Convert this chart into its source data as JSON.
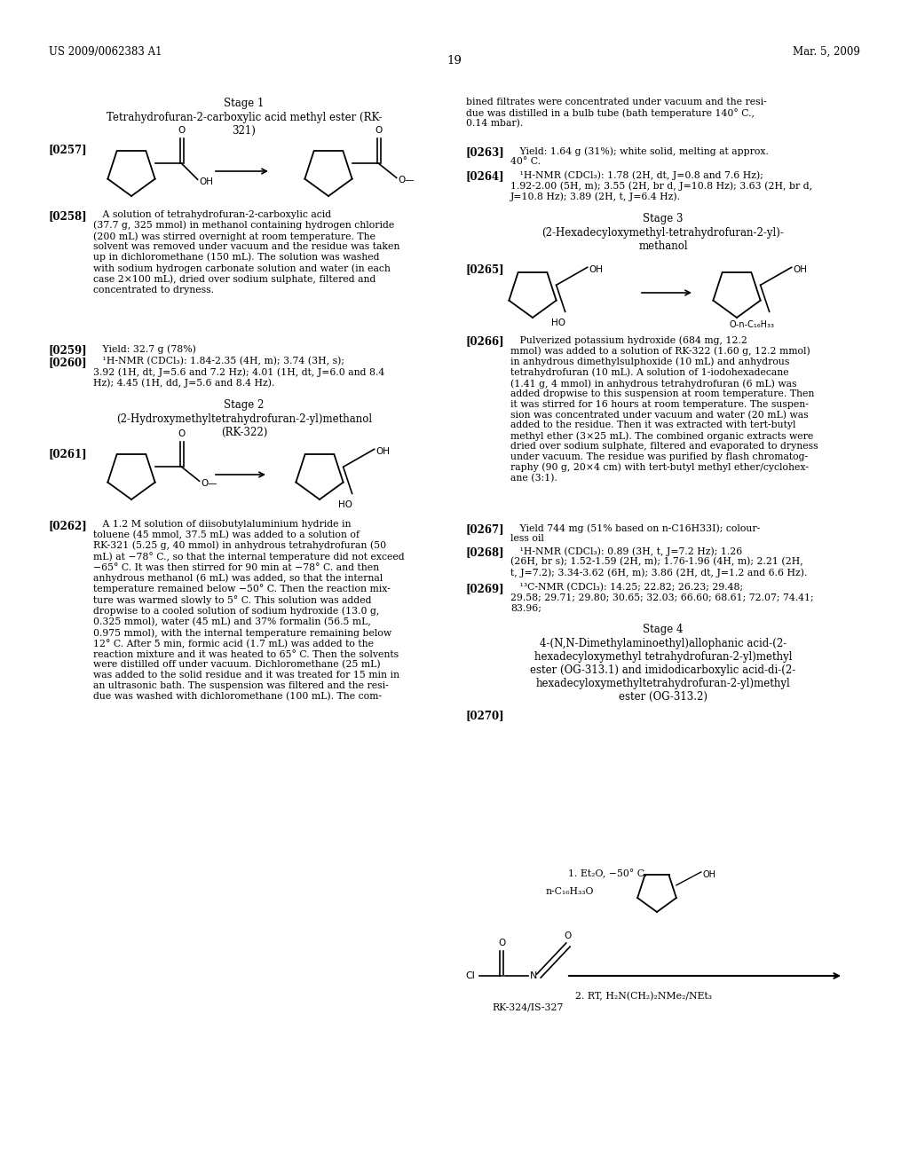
{
  "page_header_left": "US 2009/0062383 A1",
  "page_header_right": "Mar. 5, 2009",
  "page_number": "19",
  "background_color": "#ffffff",
  "stage1_title": "Stage 1",
  "stage1_subtitle": "Tetrahydrofuran-2-carboxylic acid methyl ester (RK-\n321)",
  "para0257_label": "[0257]",
  "para0258_label": "[0258]",
  "para0258_text": "   A solution of tetrahydrofuran-2-carboxylic acid\n(37.7 g, 325 mmol) in methanol containing hydrogen chloride\n(200 mL) was stirred overnight at room temperature. The\nsolvent was removed under vacuum and the residue was taken\nup in dichloromethane (150 mL). The solution was washed\nwith sodium hydrogen carbonate solution and water (in each\ncase 2×100 mL), dried over sodium sulphate, filtered and\nconcentrated to dryness.",
  "para0259_label": "[0259]",
  "para0259_text": "   Yield: 32.7 g (78%)",
  "para0260_label": "[0260]",
  "para0260_text": "   ¹H-NMR (CDCl₃): 1.84-2.35 (4H, m); 3.74 (3H, s);\n3.92 (1H, dt, J=5.6 and 7.2 Hz); 4.01 (1H, dt, J=6.0 and 8.4\nHz); 4.45 (1H, dd, J=5.6 and 8.4 Hz).",
  "stage2_title": "Stage 2",
  "stage2_subtitle": "(2-Hydroxymethyltetrahydrofuran-2-yl)methanol\n(RK-322)",
  "para0261_label": "[0261]",
  "para0262_label": "[0262]",
  "para0262_text": "   A 1.2 M solution of diisobutylaluminium hydride in\ntoluene (45 mmol, 37.5 mL) was added to a solution of\nRK-321 (5.25 g, 40 mmol) in anhydrous tetrahydrofuran (50\nmL) at −78° C., so that the internal temperature did not exceed\n−65° C. It was then stirred for 90 min at −78° C. and then\nanhydrous methanol (6 mL) was added, so that the internal\ntemperature remained below −50° C. Then the reaction mix-\nture was warmed slowly to 5° C. This solution was added\ndropwise to a cooled solution of sodium hydroxide (13.0 g,\n0.325 mmol), water (45 mL) and 37% formalin (56.5 mL,\n0.975 mmol), with the internal temperature remaining below\n12° C. After 5 min, formic acid (1.7 mL) was added to the\nreaction mixture and it was heated to 65° C. Then the solvents\nwere distilled off under vacuum. Dichloromethane (25 mL)\nwas added to the solid residue and it was treated for 15 min in\nan ultrasonic bath. The suspension was filtered and the resi-\ndue was washed with dichloromethane (100 mL). The com-",
  "right_continuation": "bined filtrates were concentrated under vacuum and the resi-\ndue was distilled in a bulb tube (bath temperature 140° C.,\n0.14 mbar).",
  "para0263_label": "[0263]",
  "para0263_text": "   Yield: 1.64 g (31%); white solid, melting at approx.\n40° C.",
  "para0264_label": "[0264]",
  "para0264_text": "   ¹H-NMR (CDCl₃): 1.78 (2H, dt, J=0.8 and 7.6 Hz);\n1.92-2.00 (5H, m); 3.55 (2H, br d, J=10.8 Hz); 3.63 (2H, br d,\nJ=10.8 Hz); 3.89 (2H, t, J=6.4 Hz).",
  "stage3_title": "Stage 3",
  "stage3_subtitle": "(2-Hexadecyloxymethyl-tetrahydrofuran-2-yl)-\nmethanol",
  "para0265_label": "[0265]",
  "para0266_label": "[0266]",
  "para0266_text": "   Pulverized potassium hydroxide (684 mg, 12.2\nmmol) was added to a solution of RK-322 (1.60 g, 12.2 mmol)\nin anhydrous dimethylsulphoxide (10 mL) and anhydrous\ntetrahydrofuran (10 mL). A solution of 1-iodohexadecane\n(1.41 g, 4 mmol) in anhydrous tetrahydrofuran (6 mL) was\nadded dropwise to this suspension at room temperature. Then\nit was stirred for 16 hours at room temperature. The suspen-\nsion was concentrated under vacuum and water (20 mL) was\nadded to the residue. Then it was extracted with tert-butyl\nmethyl ether (3×25 mL). The combined organic extracts were\ndried over sodium sulphate, filtered and evaporated to dryness\nunder vacuum. The residue was purified by flash chromatog-\nraphy (90 g, 20×4 cm) with tert-butyl methyl ether/cyclohex-\nane (3:1).",
  "para0267_label": "[0267]",
  "para0267_text": "   Yield 744 mg (51% based on n-C16H33I); colour-\nless oil",
  "para0268_label": "[0268]",
  "para0268_text": "   ¹H-NMR (CDCl₃): 0.89 (3H, t, J=7.2 Hz); 1.26\n(26H, br s); 1.52-1.59 (2H, m); 1.76-1.96 (4H, m); 2.21 (2H,\nt, J=7.2); 3.34-3.62 (6H, m); 3.86 (2H, dt, J=1.2 and 6.6 Hz).",
  "para0269_label": "[0269]",
  "para0269_text": "   ¹³C-NMR (CDCl₃): 14.25; 22.82; 26.23; 29.48;\n29.58; 29.71; 29.80; 30.65; 32.03; 66.60; 68.61; 72.07; 74.41;\n83.96;",
  "stage4_title": "Stage 4",
  "stage4_subtitle": "4-(N,N-Dimethylaminoethyl)allophanic acid-(2-\nhexadecyloxymethyl tetrahydrofuran-2-yl)methyl\nester (OG-313.1) and imidodicarboxylic acid-di-(2-\nhexadecyloxymethyltetrahydrofuran-2-yl)methyl\nester (OG-313.2)",
  "para0270_label": "[0270]",
  "rxn_label1": "1. Et₂O, −50° C.",
  "rxn_label2": "RK-324/IS-327",
  "rxn_label3": "2. RT, H₂N(CH₂)₂NMe₂/NEt₃"
}
